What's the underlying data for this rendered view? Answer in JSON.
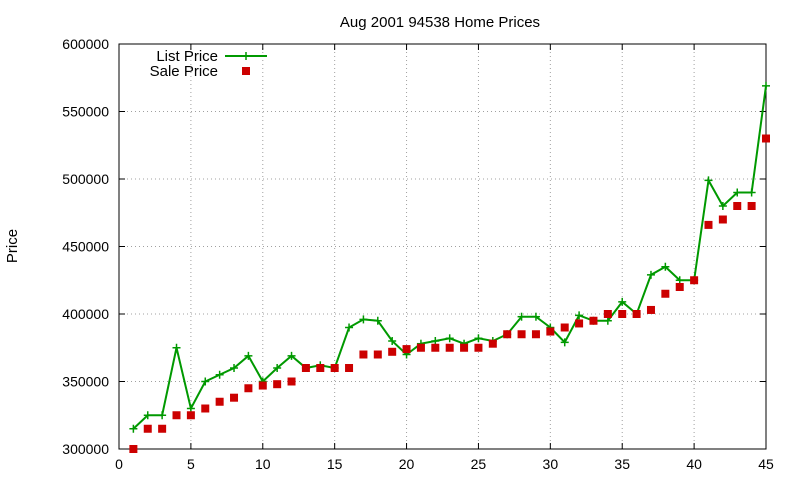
{
  "chart_data": {
    "type": "line",
    "title": "Aug 2001 94538 Home Prices",
    "xlabel": "",
    "ylabel": "Price",
    "xlim": [
      0,
      45
    ],
    "ylim": [
      300000,
      600000
    ],
    "xticks": [
      0,
      5,
      10,
      15,
      20,
      25,
      30,
      35,
      40,
      45
    ],
    "yticks": [
      300000,
      350000,
      400000,
      450000,
      500000,
      550000,
      600000
    ],
    "grid": true,
    "legend_position": "top-left",
    "series": [
      {
        "name": "List Price",
        "style": "line+cross",
        "color": "#009900",
        "x": [
          1,
          2,
          3,
          4,
          5,
          6,
          7,
          8,
          9,
          10,
          11,
          12,
          13,
          14,
          15,
          16,
          17,
          18,
          19,
          20,
          21,
          22,
          23,
          24,
          25,
          26,
          27,
          28,
          29,
          30,
          31,
          32,
          33,
          34,
          35,
          36,
          37,
          38,
          39,
          40,
          41,
          42,
          43,
          44,
          45
        ],
        "y": [
          315000,
          325000,
          325000,
          375000,
          330000,
          350000,
          355000,
          360000,
          369000,
          350000,
          360000,
          369000,
          360000,
          362000,
          360000,
          390000,
          396000,
          395000,
          380000,
          370000,
          378000,
          380000,
          382000,
          378000,
          382000,
          380000,
          385000,
          398000,
          398000,
          390000,
          379000,
          399000,
          395000,
          395000,
          409000,
          400000,
          429000,
          435000,
          425000,
          425000,
          499000,
          480000,
          490000,
          490000,
          569000
        ]
      },
      {
        "name": "Sale Price",
        "style": "square-points",
        "color": "#cc0000",
        "x": [
          1,
          2,
          3,
          4,
          5,
          6,
          7,
          8,
          9,
          10,
          11,
          12,
          13,
          14,
          15,
          16,
          17,
          18,
          19,
          20,
          21,
          22,
          23,
          24,
          25,
          26,
          27,
          28,
          29,
          30,
          31,
          32,
          33,
          34,
          35,
          36,
          37,
          38,
          39,
          40,
          41,
          42,
          43,
          44,
          45
        ],
        "y": [
          300000,
          315000,
          315000,
          325000,
          325000,
          330000,
          335000,
          338000,
          345000,
          347000,
          348000,
          350000,
          360000,
          360000,
          360000,
          360000,
          370000,
          370000,
          372000,
          374000,
          375000,
          375000,
          375000,
          375000,
          375000,
          378000,
          385000,
          385000,
          385000,
          387000,
          390000,
          393000,
          395000,
          400000,
          400000,
          400000,
          403000,
          415000,
          420000,
          425000,
          466000,
          470000,
          480000,
          480000,
          530000
        ]
      }
    ]
  }
}
